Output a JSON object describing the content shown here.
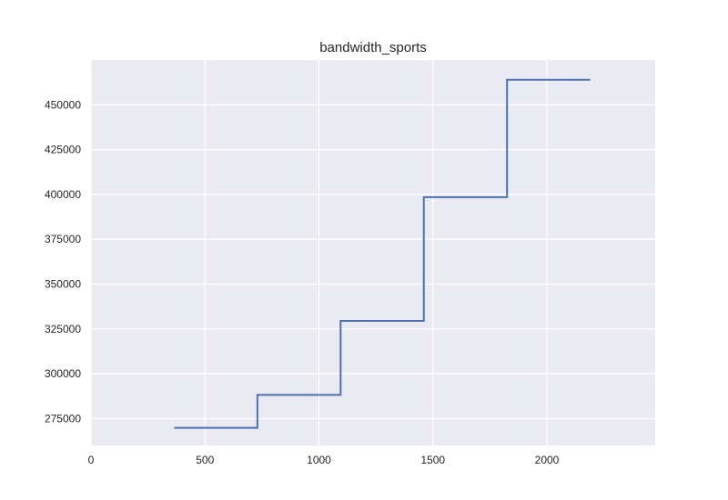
{
  "chart_data": {
    "type": "line",
    "title": "bandwidth_sports",
    "xlabel": "",
    "ylabel": "",
    "xlim": [
      0,
      2475
    ],
    "ylim": [
      260000,
      475000
    ],
    "grid": true,
    "x_ticks": [
      0,
      500,
      1000,
      1500,
      2000
    ],
    "x_tick_labels": [
      "0",
      "500",
      "1000",
      "1500",
      "2000"
    ],
    "y_ticks": [
      275000,
      300000,
      325000,
      350000,
      375000,
      400000,
      425000,
      450000
    ],
    "y_tick_labels": [
      "275000",
      "300000",
      "325000",
      "350000",
      "375000",
      "400000",
      "425000",
      "450000"
    ],
    "series": [
      {
        "step": true,
        "x": [
          365,
          730,
          730,
          1095,
          1095,
          1460,
          1460,
          1825,
          1825,
          2190
        ],
        "y": [
          269800,
          269800,
          288200,
          288200,
          329500,
          329500,
          398500,
          398500,
          464000,
          464000
        ]
      }
    ],
    "colors": {
      "background": "#eaeaf2",
      "grid": "#ffffff",
      "line": "#4c72b0",
      "text": "#262626"
    }
  }
}
